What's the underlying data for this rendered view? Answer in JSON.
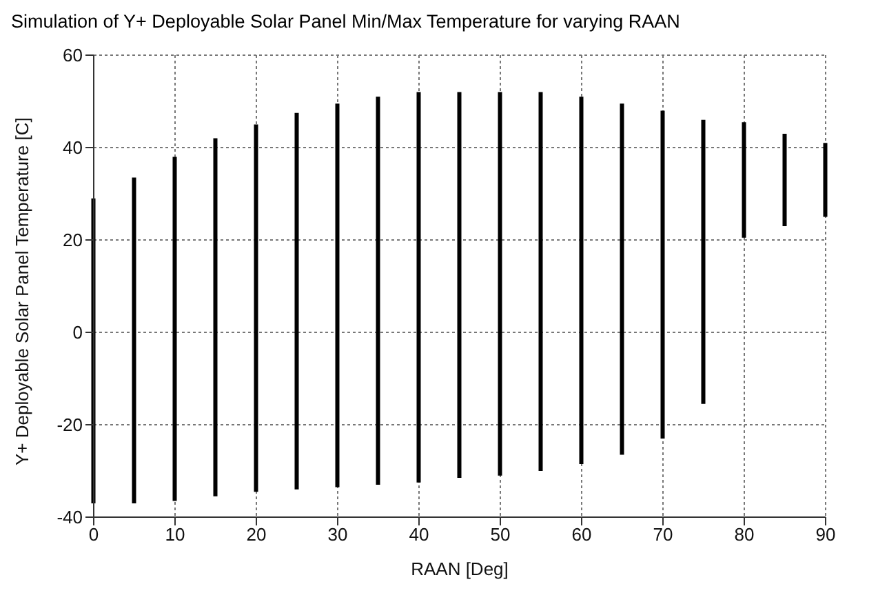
{
  "chart_data": {
    "type": "bar",
    "title": "Simulation of Y+ Deployable Solar Panel Min/Max Temperature for varying RAAN",
    "xlabel": "RAAN [Deg]",
    "ylabel": "Y+ Deployable Solar Panel Temperature [C]",
    "x": [
      0,
      5,
      10,
      15,
      20,
      25,
      30,
      35,
      40,
      45,
      50,
      55,
      60,
      65,
      70,
      75,
      80,
      85,
      90
    ],
    "base": [
      -37,
      -37,
      -36.5,
      -35.5,
      -34.5,
      -34,
      -33.5,
      -33,
      -32.5,
      -31.5,
      -31,
      -30,
      -28.5,
      -26.5,
      -23,
      -15.5,
      20.5,
      23,
      25
    ],
    "values": [
      66,
      70.5,
      74.5,
      77.5,
      79.5,
      81.5,
      83,
      84,
      84.5,
      83.5,
      83,
      82,
      79.5,
      76,
      71,
      61.5,
      25,
      20,
      16
    ],
    "color": "#000000",
    "xlim": [
      0,
      90
    ],
    "xticks": [
      0,
      10,
      20,
      30,
      40,
      50,
      60,
      70,
      80,
      90
    ],
    "ylim": [
      -40,
      60
    ],
    "yticks": [
      -40,
      -20,
      0,
      20,
      40,
      60
    ],
    "grid": true
  }
}
